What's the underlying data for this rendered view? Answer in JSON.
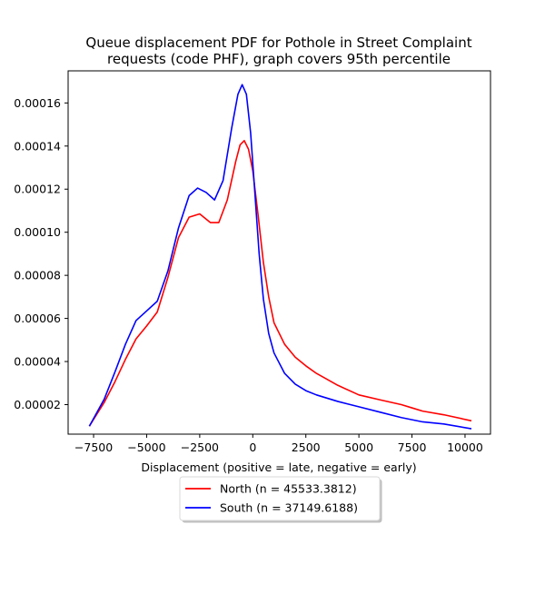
{
  "chart_data": {
    "type": "line",
    "title": "Queue displacement PDF for Pothole in Street Complaint\nrequests (code PHF), graph covers 95th percentile",
    "xlabel": "Displacement (positive = late, negative = early)",
    "ylabel": "",
    "xlim": [
      -8700,
      11200
    ],
    "ylim": [
      6.3e-06,
      0.0001749
    ],
    "x_ticks": [
      -7500,
      -5000,
      -2500,
      0,
      2500,
      5000,
      7500,
      10000
    ],
    "x_tick_labels": [
      "−7500",
      "−5000",
      "−2500",
      "0",
      "2500",
      "5000",
      "7500",
      "10000"
    ],
    "y_ticks": [
      2e-05,
      4e-05,
      6e-05,
      8e-05,
      0.0001,
      0.00012,
      0.00014,
      0.00016
    ],
    "y_tick_labels": [
      "0.00002",
      "0.00004",
      "0.00006",
      "0.00008",
      "0.00010",
      "0.00012",
      "0.00014",
      "0.00016"
    ],
    "grid": false,
    "legend_position": "below-center",
    "series": [
      {
        "name": "North (n = 45533.3812)",
        "color": "#ff0000",
        "points": [
          [
            -7700,
            1e-05
          ],
          [
            -7000,
            2.1e-05
          ],
          [
            -6500,
            3.05e-05
          ],
          [
            -6000,
            4.1e-05
          ],
          [
            -5500,
            5.05e-05
          ],
          [
            -5000,
            5.65e-05
          ],
          [
            -4500,
            6.3e-05
          ],
          [
            -4000,
            7.9e-05
          ],
          [
            -3500,
            9.75e-05
          ],
          [
            -3000,
            0.000107
          ],
          [
            -2500,
            0.0001085
          ],
          [
            -2000,
            0.0001045
          ],
          [
            -1600,
            0.0001045
          ],
          [
            -1200,
            0.000115
          ],
          [
            -800,
            0.000133
          ],
          [
            -600,
            0.0001405
          ],
          [
            -400,
            0.0001425
          ],
          [
            -200,
            0.0001385
          ],
          [
            0,
            0.0001285
          ],
          [
            250,
            0.000108
          ],
          [
            500,
            8.6e-05
          ],
          [
            750,
            7e-05
          ],
          [
            1000,
            5.8e-05
          ],
          [
            1500,
            4.8e-05
          ],
          [
            2000,
            4.2e-05
          ],
          [
            2500,
            3.8e-05
          ],
          [
            3000,
            3.45e-05
          ],
          [
            4000,
            2.9e-05
          ],
          [
            5000,
            2.45e-05
          ],
          [
            6000,
            2.22e-05
          ],
          [
            7000,
            2e-05
          ],
          [
            7500,
            1.85e-05
          ],
          [
            8000,
            1.7e-05
          ],
          [
            9000,
            1.53e-05
          ],
          [
            10300,
            1.25e-05
          ]
        ]
      },
      {
        "name": "South (n = 37149.6188)",
        "color": "#0000ff",
        "points": [
          [
            -7700,
            1e-05
          ],
          [
            -7000,
            2.25e-05
          ],
          [
            -6500,
            3.5e-05
          ],
          [
            -6000,
            4.8e-05
          ],
          [
            -5500,
            5.9e-05
          ],
          [
            -5000,
            6.35e-05
          ],
          [
            -4500,
            6.8e-05
          ],
          [
            -4000,
            8.2e-05
          ],
          [
            -3500,
            0.000102
          ],
          [
            -3000,
            0.000117
          ],
          [
            -2600,
            0.0001205
          ],
          [
            -2200,
            0.0001185
          ],
          [
            -1800,
            0.000115
          ],
          [
            -1400,
            0.000124
          ],
          [
            -1000,
            0.000148
          ],
          [
            -700,
            0.000164
          ],
          [
            -500,
            0.0001685
          ],
          [
            -300,
            0.000164
          ],
          [
            -100,
            0.000146
          ],
          [
            100,
            0.000118
          ],
          [
            300,
            9e-05
          ],
          [
            500,
            6.9e-05
          ],
          [
            750,
            5.3e-05
          ],
          [
            1000,
            4.4e-05
          ],
          [
            1500,
            3.45e-05
          ],
          [
            2000,
            2.95e-05
          ],
          [
            2500,
            2.65e-05
          ],
          [
            3000,
            2.45e-05
          ],
          [
            4000,
            2.15e-05
          ],
          [
            5000,
            1.9e-05
          ],
          [
            6000,
            1.65e-05
          ],
          [
            7000,
            1.4e-05
          ],
          [
            8000,
            1.2e-05
          ],
          [
            9000,
            1.1e-05
          ],
          [
            10300,
            8.8e-06
          ]
        ]
      }
    ]
  }
}
